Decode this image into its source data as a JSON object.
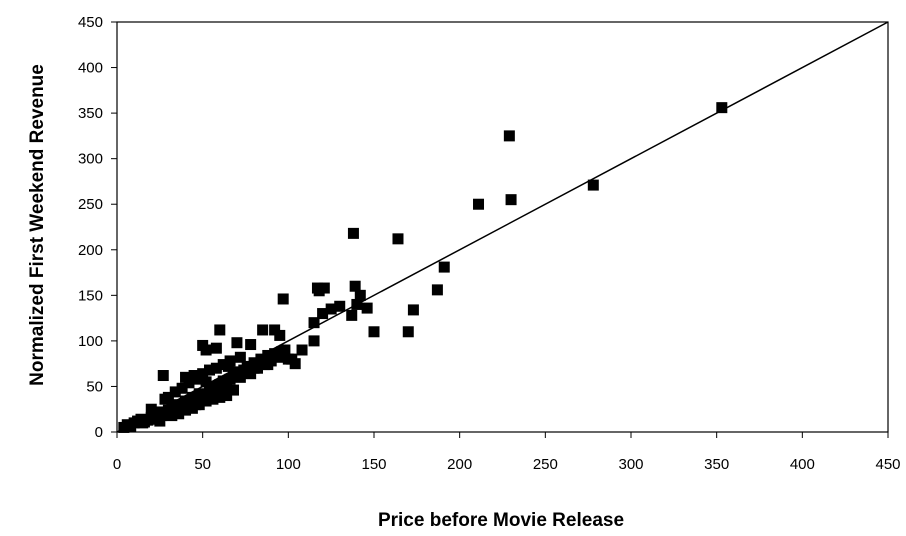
{
  "chart_data": {
    "type": "scatter",
    "title": "",
    "xlabel": "Price before Movie Release",
    "ylabel": "Normalized First Weekend Revenue",
    "xlim": [
      0,
      450
    ],
    "ylim": [
      0,
      450
    ],
    "x_ticks": [
      0,
      50,
      100,
      150,
      200,
      250,
      300,
      350,
      400,
      450
    ],
    "y_ticks": [
      0,
      50,
      100,
      150,
      200,
      250,
      300,
      350,
      400,
      450
    ],
    "grid": false,
    "legend": "none",
    "marker": "square",
    "colors": {
      "marker": "#000000",
      "axis": "#000000",
      "fit_line": "#000000"
    },
    "fit_line": {
      "x": [
        0,
        450
      ],
      "y": [
        0,
        450
      ]
    },
    "series": [
      {
        "points": [
          [
            4,
            5
          ],
          [
            6,
            8
          ],
          [
            8,
            6
          ],
          [
            10,
            10
          ],
          [
            12,
            12
          ],
          [
            14,
            14
          ],
          [
            16,
            11
          ],
          [
            18,
            13
          ],
          [
            20,
            16
          ],
          [
            22,
            14
          ],
          [
            24,
            22
          ],
          [
            25,
            12
          ],
          [
            26,
            18
          ],
          [
            28,
            20
          ],
          [
            30,
            24
          ],
          [
            32,
            28
          ],
          [
            34,
            22
          ],
          [
            36,
            30
          ],
          [
            38,
            26
          ],
          [
            40,
            34
          ],
          [
            42,
            32
          ],
          [
            44,
            38
          ],
          [
            46,
            30
          ],
          [
            48,
            42
          ],
          [
            50,
            36
          ],
          [
            52,
            40
          ],
          [
            54,
            46
          ],
          [
            56,
            50
          ],
          [
            58,
            44
          ],
          [
            60,
            52
          ],
          [
            62,
            56
          ],
          [
            64,
            48
          ],
          [
            66,
            58
          ],
          [
            68,
            62
          ],
          [
            70,
            66
          ],
          [
            72,
            60
          ],
          [
            74,
            68
          ],
          [
            76,
            72
          ],
          [
            78,
            64
          ],
          [
            80,
            76
          ],
          [
            82,
            70
          ],
          [
            84,
            80
          ],
          [
            86,
            74
          ],
          [
            88,
            84
          ],
          [
            90,
            78
          ],
          [
            92,
            86
          ],
          [
            94,
            82
          ],
          [
            96,
            88
          ],
          [
            98,
            90
          ],
          [
            100,
            80
          ],
          [
            30,
            38
          ],
          [
            34,
            44
          ],
          [
            38,
            48
          ],
          [
            42,
            54
          ],
          [
            46,
            58
          ],
          [
            50,
            64
          ],
          [
            54,
            68
          ],
          [
            58,
            70
          ],
          [
            62,
            74
          ],
          [
            66,
            78
          ],
          [
            32,
            18
          ],
          [
            36,
            20
          ],
          [
            40,
            24
          ],
          [
            44,
            26
          ],
          [
            48,
            30
          ],
          [
            52,
            34
          ],
          [
            56,
            36
          ],
          [
            60,
            38
          ],
          [
            64,
            40
          ],
          [
            68,
            46
          ],
          [
            27,
            62
          ],
          [
            40,
            60
          ],
          [
            50,
            95
          ],
          [
            52,
            90
          ],
          [
            58,
            92
          ],
          [
            60,
            112
          ],
          [
            70,
            98
          ],
          [
            78,
            96
          ],
          [
            85,
            112
          ],
          [
            88,
            74
          ],
          [
            92,
            112
          ],
          [
            95,
            106
          ],
          [
            97,
            146
          ],
          [
            102,
            80
          ],
          [
            104,
            75
          ],
          [
            115,
            120
          ],
          [
            115,
            100
          ],
          [
            117,
            158
          ],
          [
            120,
            130
          ],
          [
            125,
            135
          ],
          [
            130,
            138
          ],
          [
            137,
            128
          ],
          [
            140,
            140
          ],
          [
            142,
            150
          ],
          [
            146,
            136
          ],
          [
            150,
            110
          ],
          [
            118,
            155
          ],
          [
            121,
            158
          ],
          [
            138,
            218
          ],
          [
            139,
            160
          ],
          [
            164,
            212
          ],
          [
            170,
            110
          ],
          [
            173,
            134
          ],
          [
            187,
            156
          ],
          [
            191,
            181
          ],
          [
            211,
            250
          ],
          [
            229,
            325
          ],
          [
            230,
            255
          ],
          [
            278,
            271
          ],
          [
            353,
            356
          ],
          [
            45,
            62
          ],
          [
            52,
            55
          ],
          [
            65,
            72
          ],
          [
            72,
            82
          ],
          [
            80,
            70
          ],
          [
            93,
            84
          ],
          [
            108,
            90
          ],
          [
            20,
            25
          ],
          [
            15,
            10
          ],
          [
            28,
            36
          ]
        ]
      }
    ]
  }
}
